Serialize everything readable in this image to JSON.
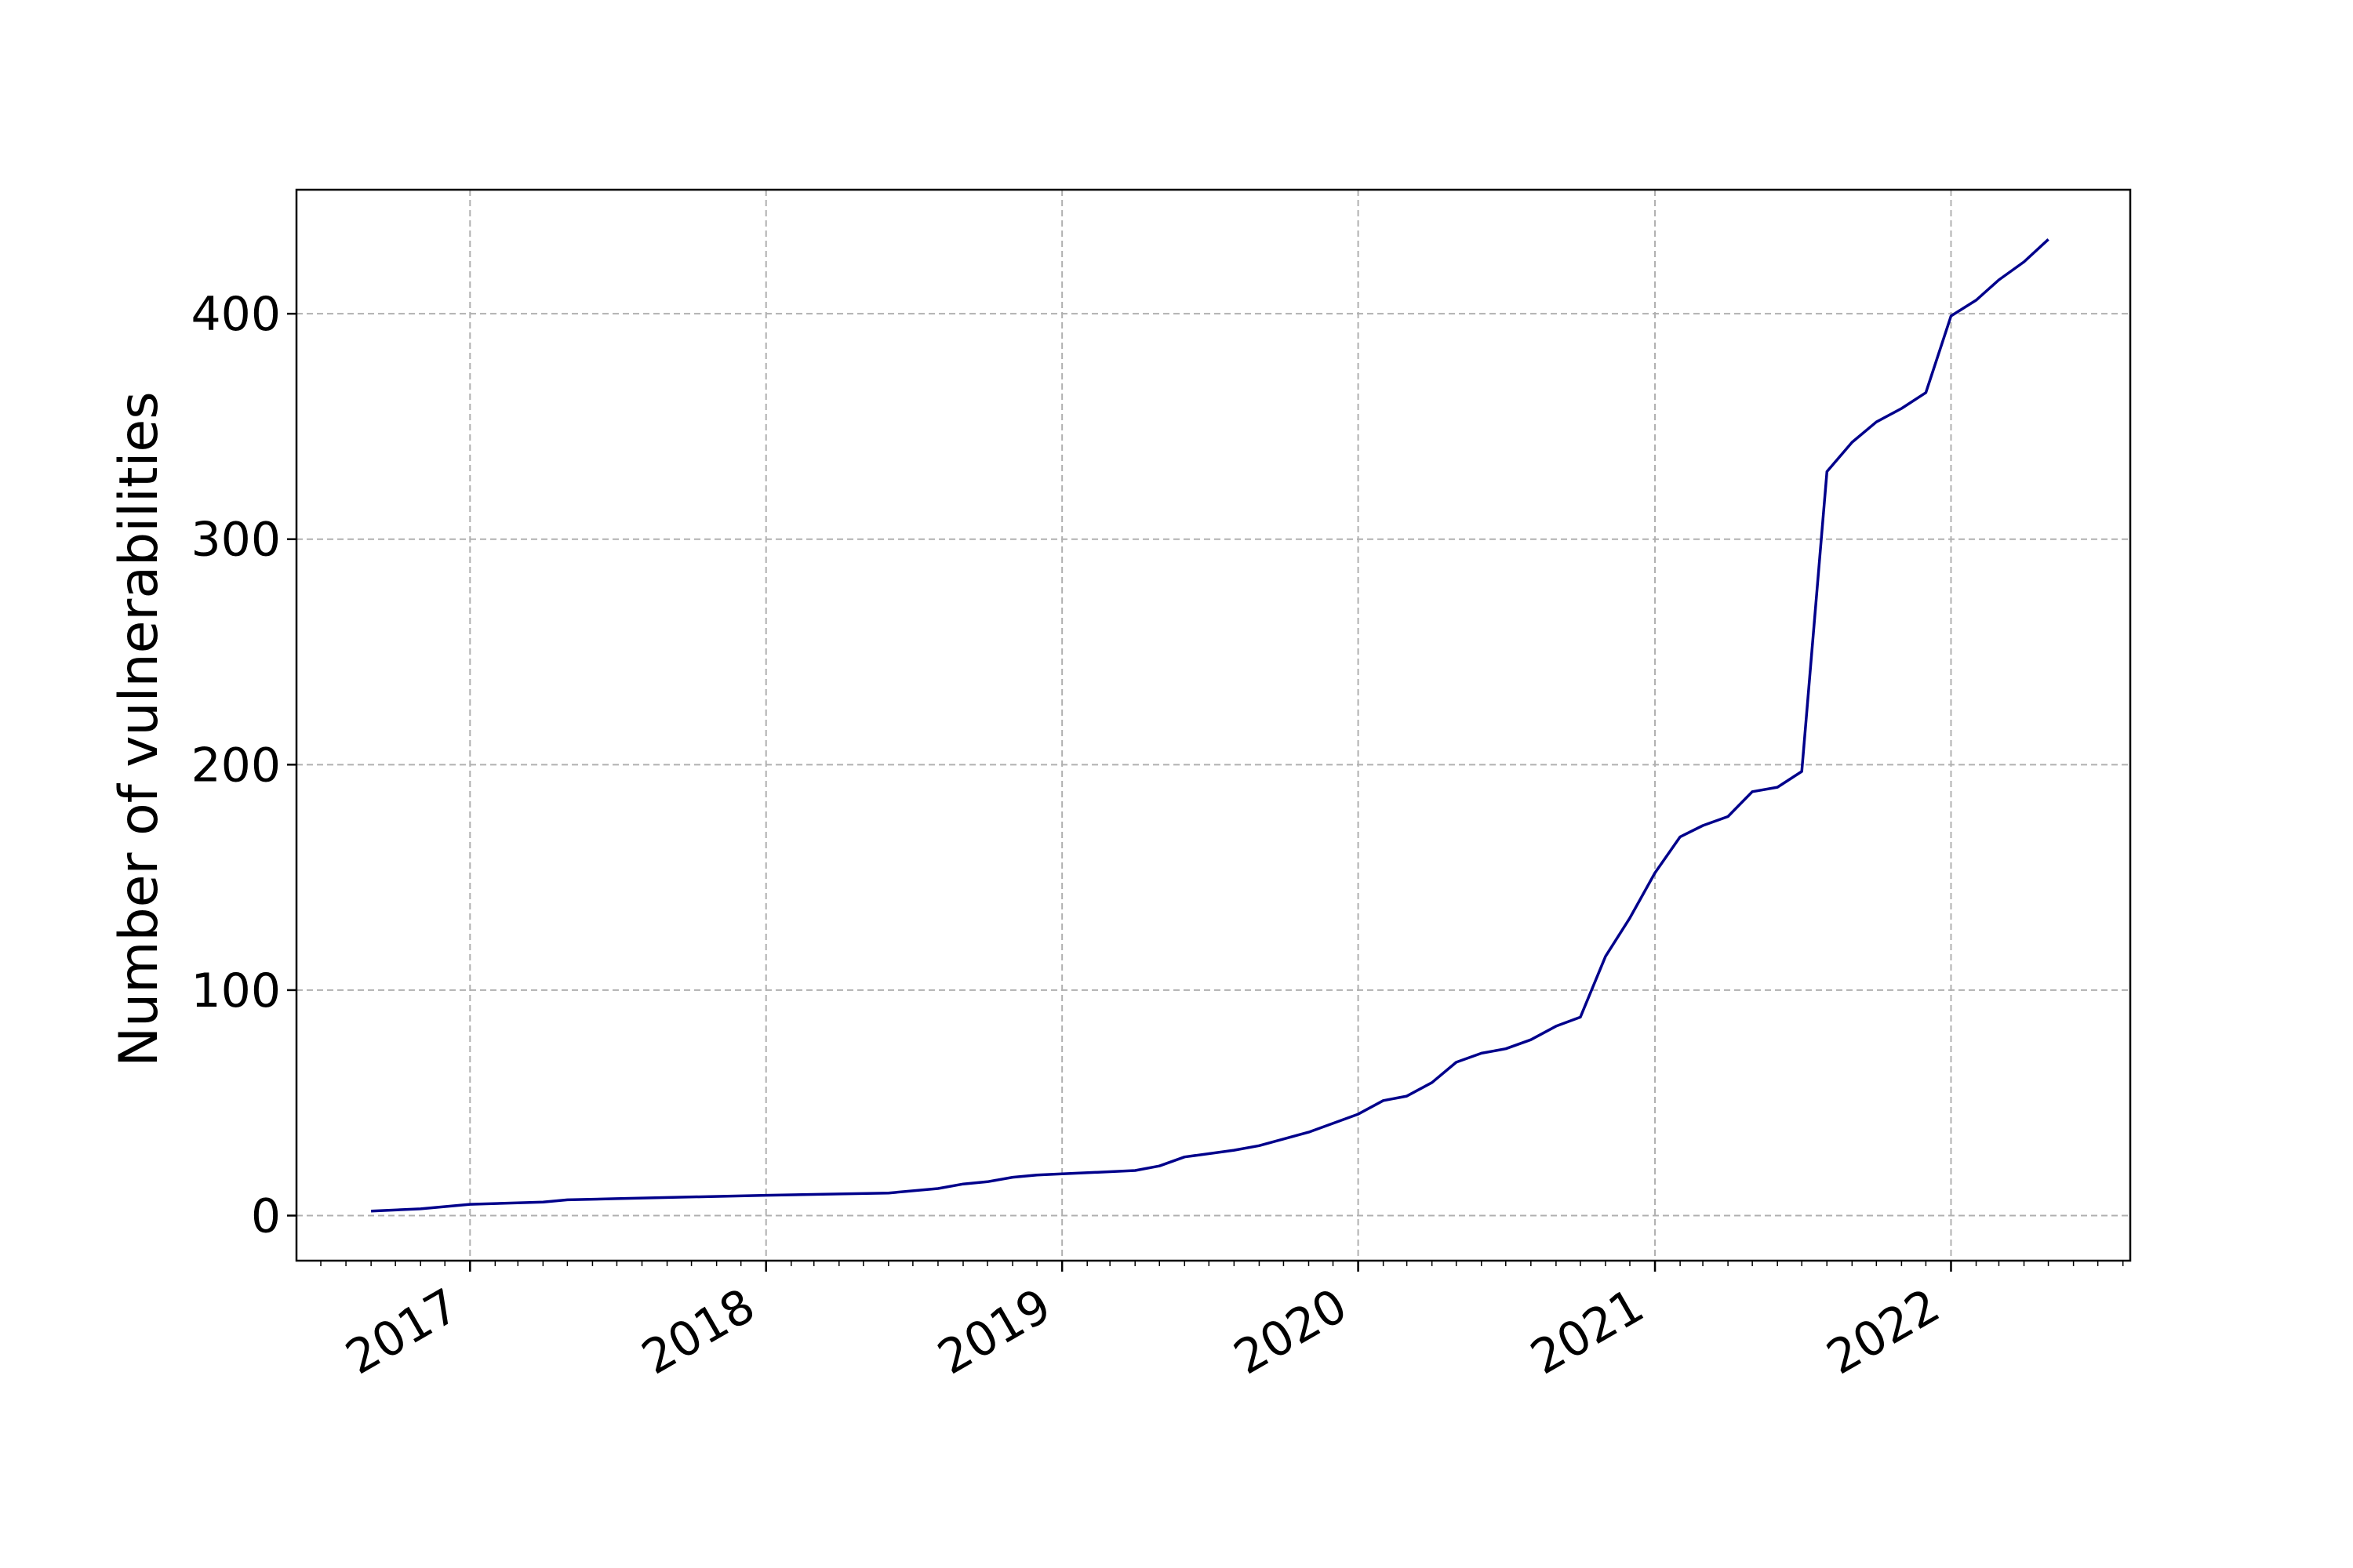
{
  "chart_data": {
    "type": "line",
    "title": "",
    "xlabel": "",
    "ylabel": "Number of vulnerabilities",
    "x_tick_labels": [
      "2017",
      "2018",
      "2019",
      "2020",
      "2021",
      "2022"
    ],
    "y_tick_labels": [
      "0",
      "100",
      "200",
      "300",
      "400"
    ],
    "y_ticks": [
      0,
      100,
      200,
      300,
      400
    ],
    "xlim": [
      "2016-06-01",
      "2022-08-10"
    ],
    "ylim": [
      -20,
      455
    ],
    "grid": true,
    "line_color": "#00008b",
    "series": [
      {
        "x": [
          "2016-09-01",
          "2016-11-01",
          "2017-01-01",
          "2017-04-01",
          "2017-05-01",
          "2017-07-01",
          "2018-01-01",
          "2018-06-01",
          "2018-08-01",
          "2018-09-01",
          "2018-10-01",
          "2018-11-01",
          "2018-12-01",
          "2019-01-01",
          "2019-04-01",
          "2019-05-01",
          "2019-06-01",
          "2019-08-01",
          "2019-09-01",
          "2019-11-01",
          "2020-01-01",
          "2020-02-01",
          "2020-03-01",
          "2020-04-01",
          "2020-05-01",
          "2020-06-01",
          "2020-07-01",
          "2020-08-01",
          "2020-09-01",
          "2020-10-01",
          "2020-11-01",
          "2020-12-01",
          "2021-01-01",
          "2021-02-01",
          "2021-03-01",
          "2021-04-01",
          "2021-05-01",
          "2021-06-01",
          "2021-07-01",
          "2021-08-01",
          "2021-09-01",
          "2021-10-01",
          "2021-11-01",
          "2021-12-01",
          "2022-01-01",
          "2022-02-01",
          "2022-03-01",
          "2022-04-01",
          "2022-05-01"
        ],
        "y": [
          2,
          3,
          5,
          6,
          7,
          7.5,
          9,
          10,
          12,
          14,
          15,
          17,
          18,
          18.5,
          20,
          22,
          26,
          29,
          31,
          37,
          45,
          51,
          53,
          59,
          68,
          72,
          74,
          78,
          84,
          88,
          115,
          132,
          152,
          168,
          173,
          177,
          188,
          190,
          197,
          330,
          343,
          352,
          358,
          365,
          399,
          406,
          415,
          423,
          433
        ]
      }
    ]
  }
}
